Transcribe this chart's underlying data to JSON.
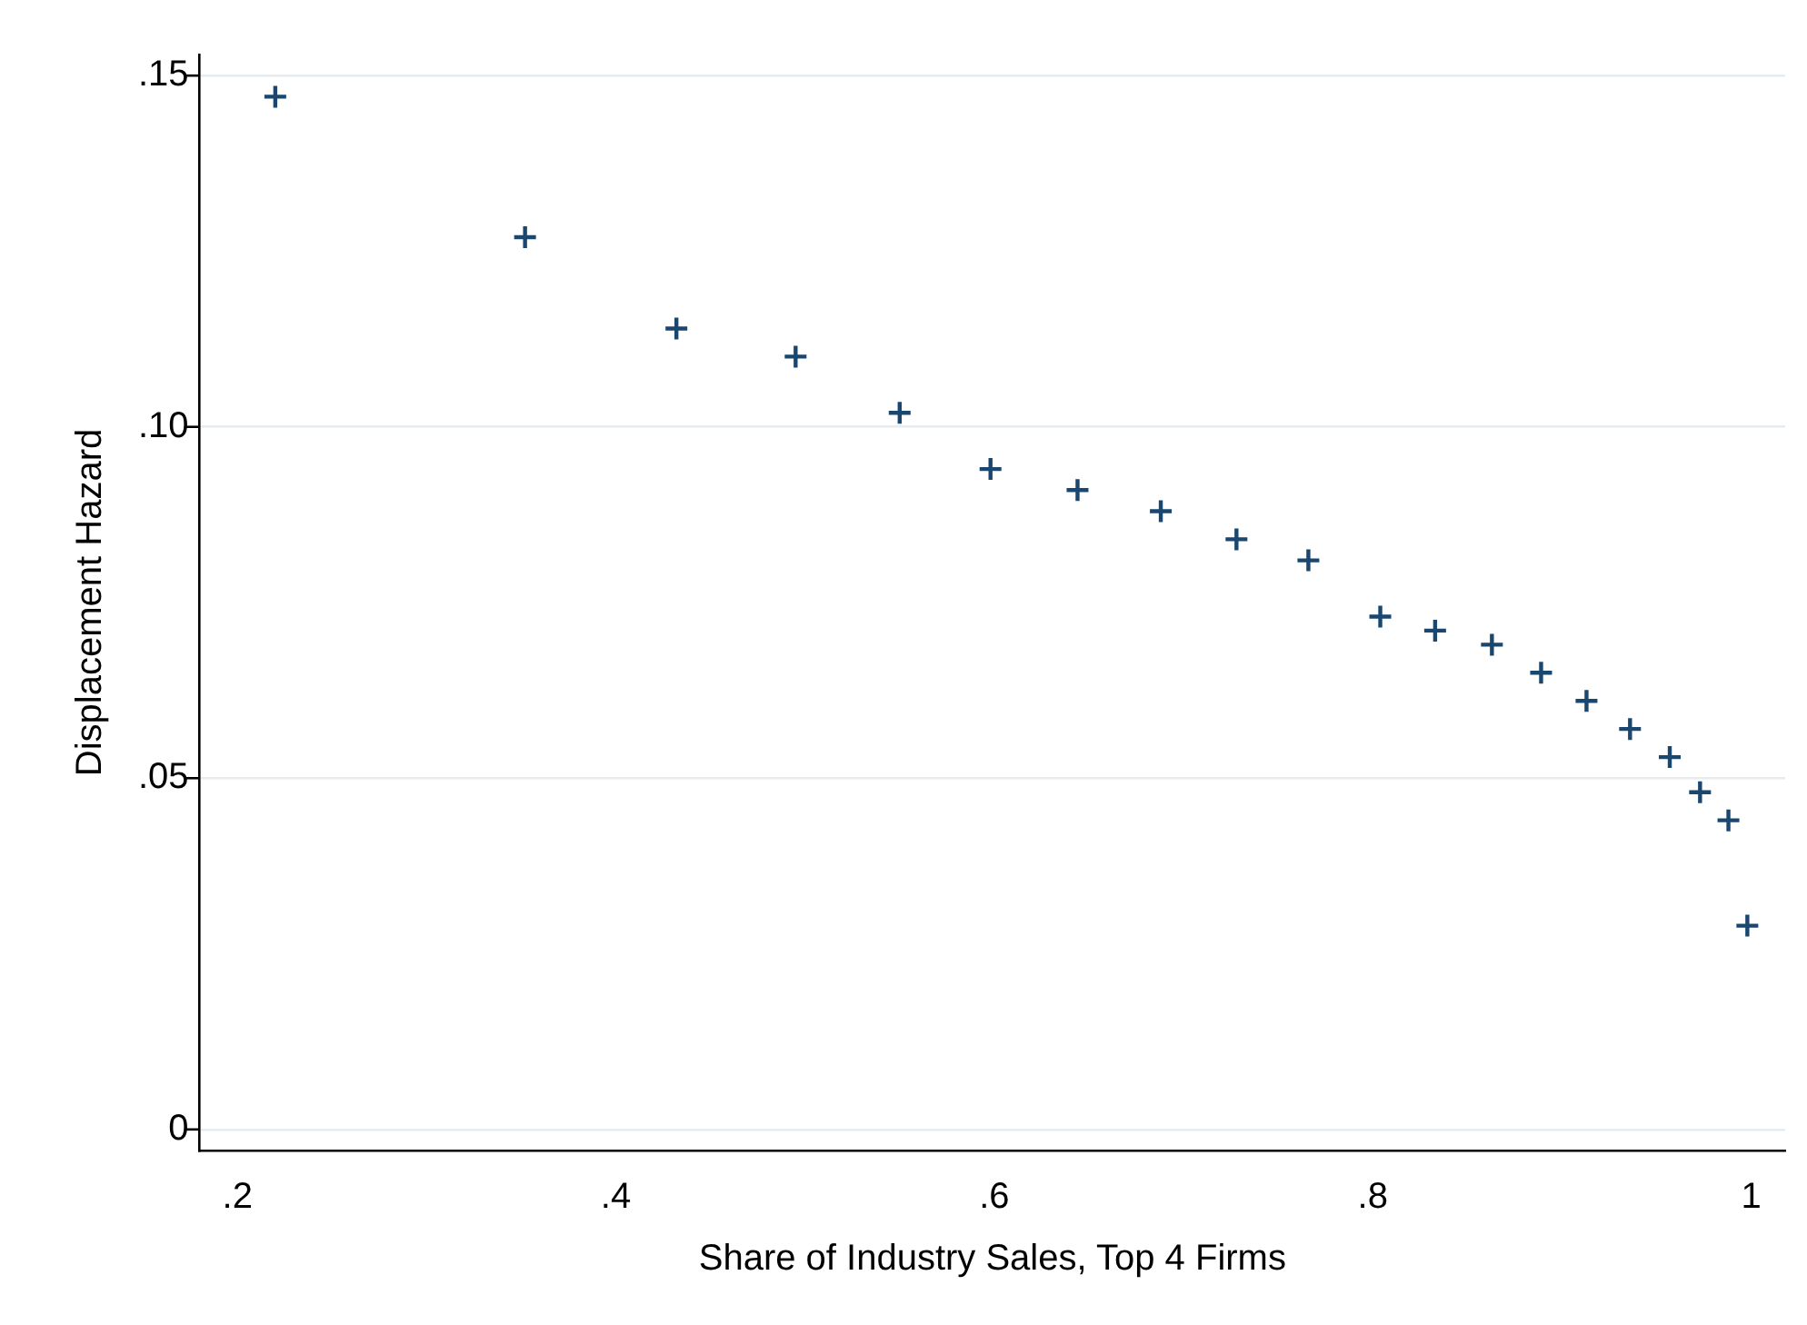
{
  "chart_data": {
    "type": "scatter",
    "xlabel": "Share of Industry Sales, Top 4 Firms",
    "ylabel": "Displacement Hazard",
    "x": [
      0.22,
      0.352,
      0.432,
      0.495,
      0.55,
      0.598,
      0.644,
      0.688,
      0.728,
      0.766,
      0.804,
      0.833,
      0.863,
      0.889,
      0.913,
      0.936,
      0.957,
      0.973,
      0.988,
      0.998
    ],
    "series": [
      {
        "color": "#1a476f",
        "values": [
          0.147,
          0.127,
          0.114,
          0.11,
          0.102,
          0.094,
          0.091,
          0.088,
          0.084,
          0.081,
          0.073,
          0.071,
          0.069,
          0.065,
          0.061,
          0.057,
          0.053,
          0.048,
          0.044,
          0.029
        ]
      }
    ],
    "xlim": [
      0.18,
      1.018
    ],
    "ylim": [
      -0.003,
      0.153
    ],
    "xticks": [
      {
        "value": 0.2,
        "label": ".2"
      },
      {
        "value": 0.4,
        "label": ".4"
      },
      {
        "value": 0.6,
        "label": ".6"
      },
      {
        "value": 0.8,
        "label": ".8"
      },
      1
    ],
    "yticks": [
      0,
      {
        "value": 0.05,
        "label": ".05"
      },
      {
        "value": 0.1,
        "label": ".10"
      },
      {
        "value": 0.15,
        "label": ".15"
      }
    ],
    "grid": "y",
    "legend": false,
    "marker": "cross"
  }
}
